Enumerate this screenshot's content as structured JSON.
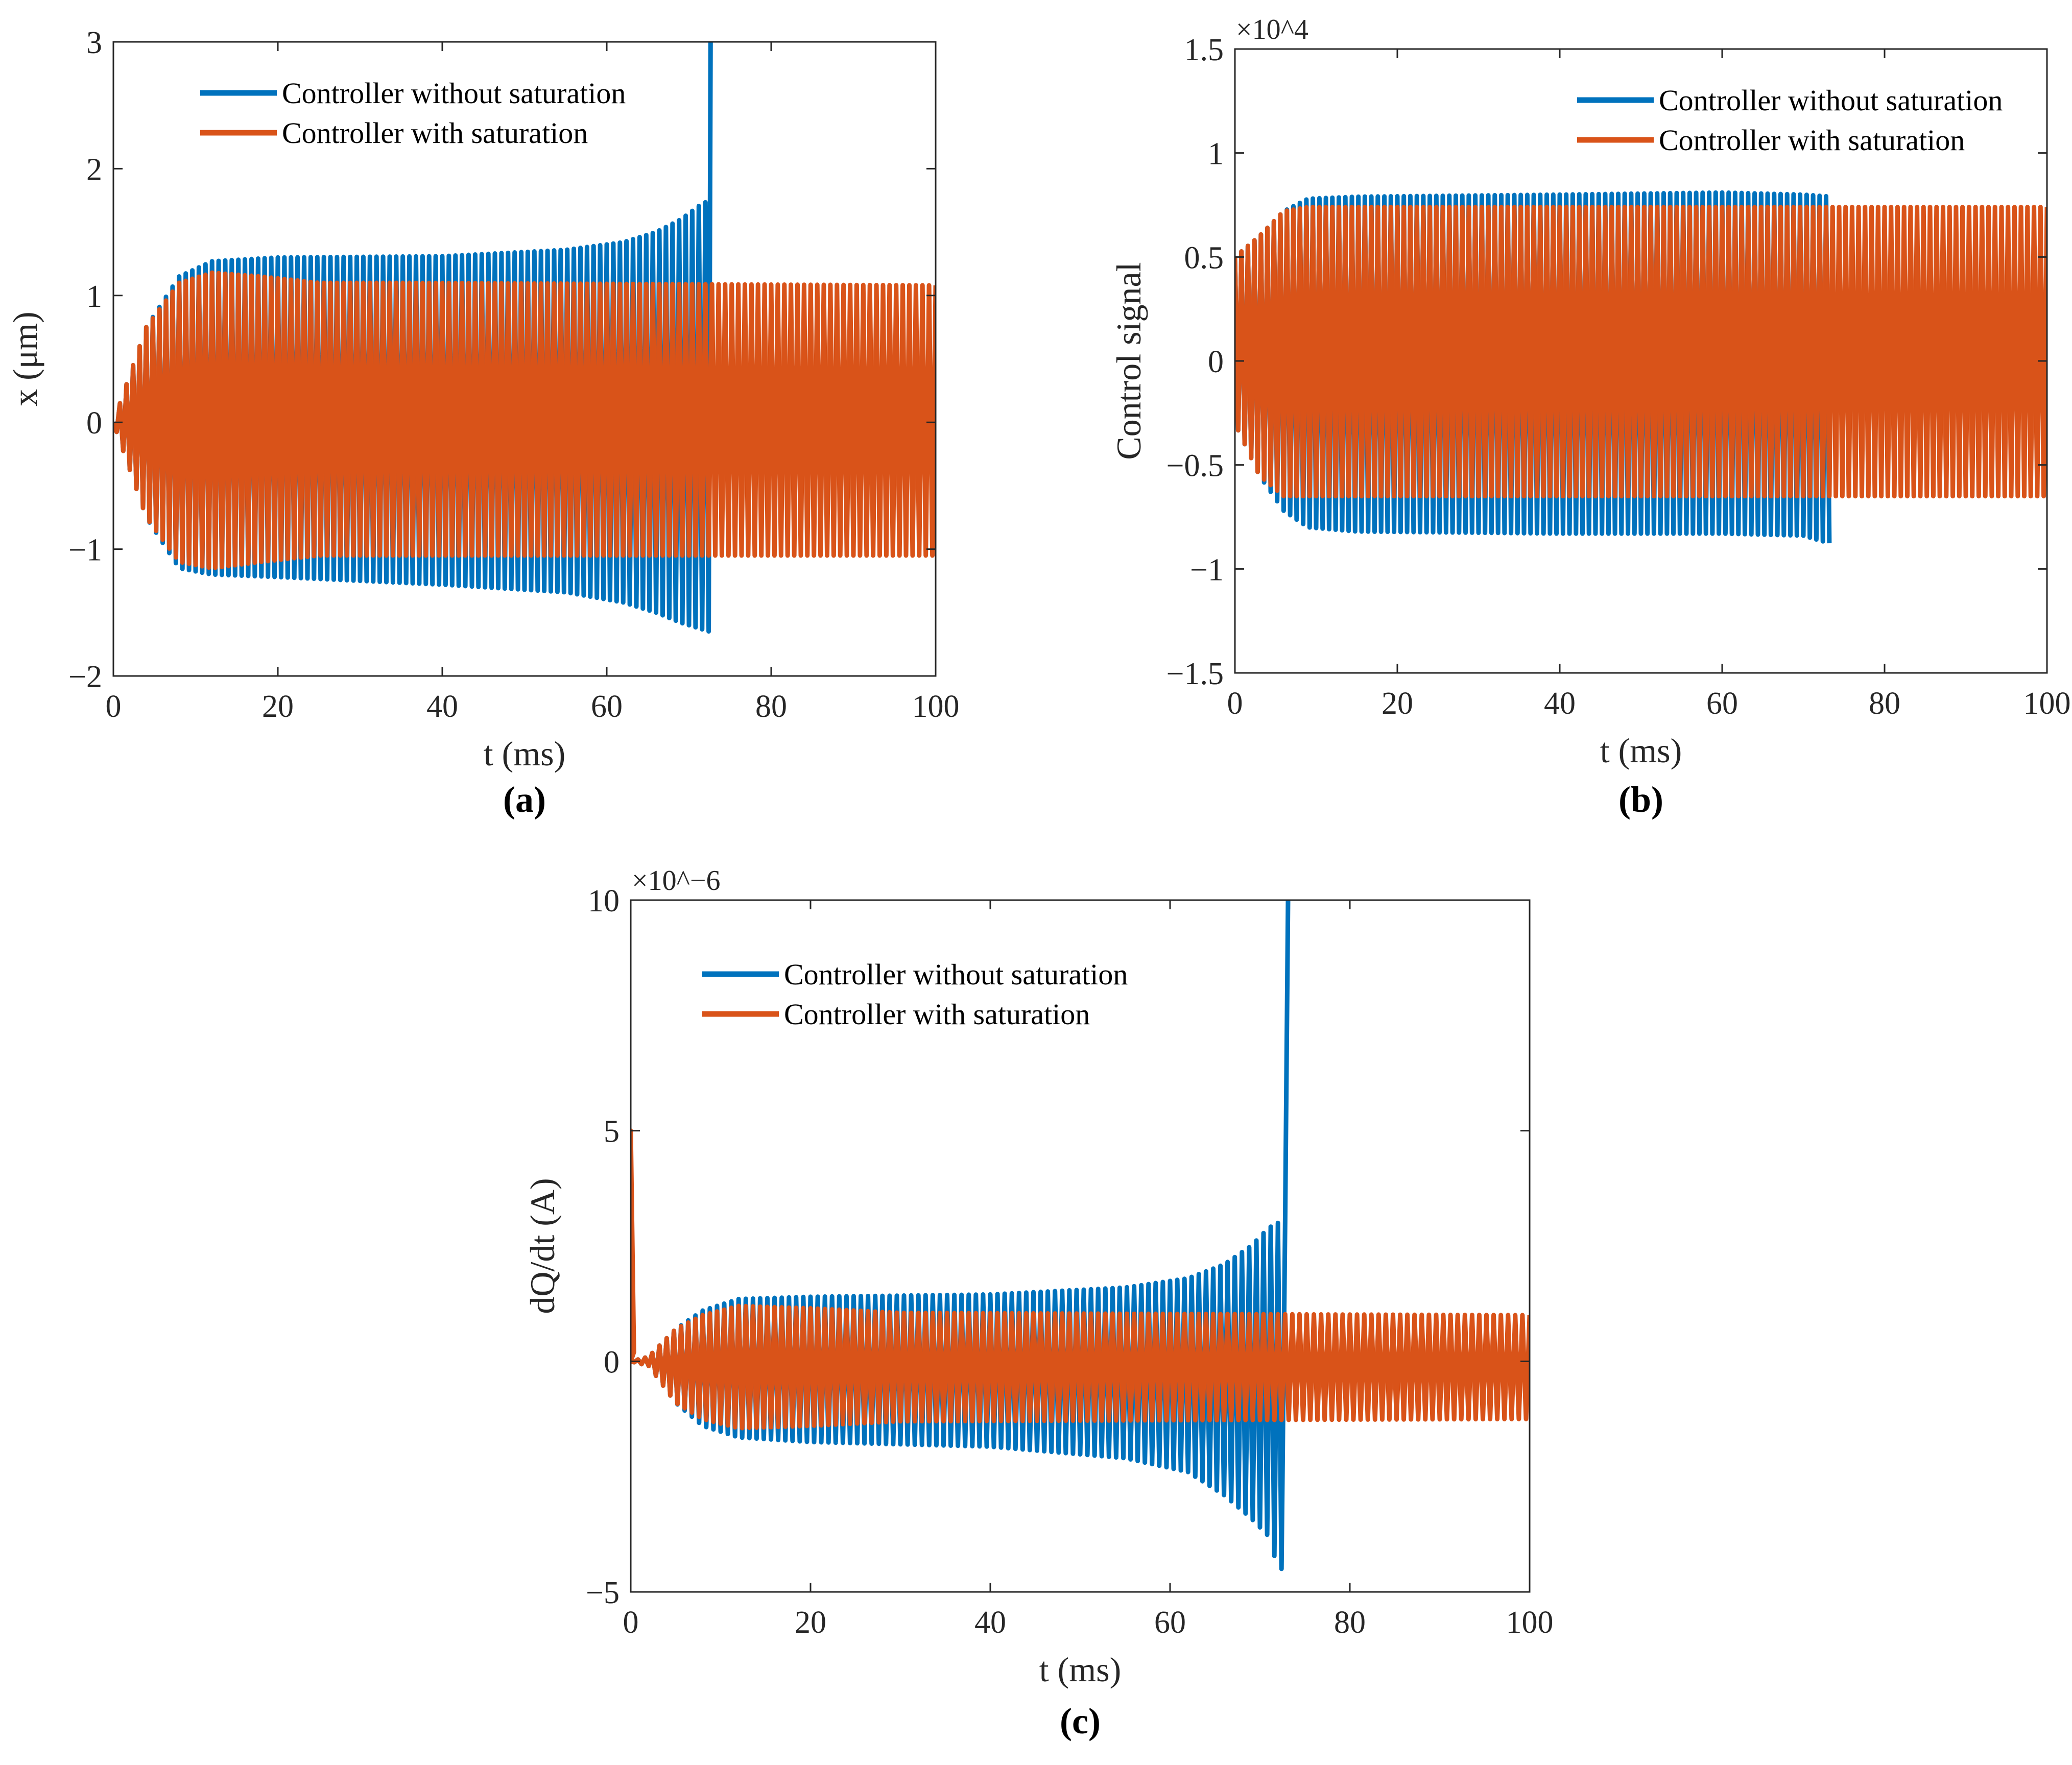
{
  "colors": {
    "without": "#0072BD",
    "with": "#D95319",
    "axis": "#262626"
  },
  "legend": {
    "without": "Controller without saturation",
    "with": "Controller with saturation"
  },
  "chart_data": [
    {
      "id": "a",
      "type": "line",
      "panel_label": "(a)",
      "xlabel": "t (ms)",
      "ylabel": "x (μm)",
      "xlim": [
        0,
        100
      ],
      "ylim": [
        -2,
        3
      ],
      "exponent": "",
      "xticks": [
        0,
        20,
        40,
        60,
        80,
        100
      ],
      "yticks": [
        -2,
        -1,
        0,
        1,
        2,
        3
      ],
      "xtick_labels": [
        "0",
        "20",
        "40",
        "60",
        "80",
        "100"
      ],
      "ytick_labels": [
        "−2",
        "−1",
        "0",
        "1",
        "2",
        "3"
      ],
      "legend_position": "top-left",
      "series": [
        {
          "name": "Controller without saturation",
          "color_key": "without",
          "period_ms": 0.8,
          "stop_x": 72.5,
          "blowup_to": 3.0,
          "envelope": [
            [
              0,
              0
            ],
            [
              4,
              0.75
            ],
            [
              8,
              1.15
            ],
            [
              12,
              1.27
            ],
            [
              20,
              1.3
            ],
            [
              40,
              1.31
            ],
            [
              55,
              1.36
            ],
            [
              62,
              1.42
            ],
            [
              66,
              1.5
            ],
            [
              69,
              1.6
            ],
            [
              71.5,
              1.72
            ],
            [
              72.5,
              1.75
            ]
          ],
          "lower_envelope": [
            [
              0,
              0
            ],
            [
              4,
              -0.75
            ],
            [
              8,
              -1.15
            ],
            [
              12,
              -1.2
            ],
            [
              20,
              -1.22
            ],
            [
              40,
              -1.28
            ],
            [
              55,
              -1.34
            ],
            [
              62,
              -1.42
            ],
            [
              66,
              -1.5
            ],
            [
              69,
              -1.58
            ],
            [
              72.5,
              -1.65
            ]
          ]
        },
        {
          "name": "Controller with saturation",
          "color_key": "with",
          "period_ms": 0.8,
          "envelope": [
            [
              0,
              0
            ],
            [
              4,
              0.75
            ],
            [
              8,
              1.1
            ],
            [
              12,
              1.18
            ],
            [
              18,
              1.15
            ],
            [
              25,
              1.1
            ],
            [
              35,
              1.1
            ],
            [
              100,
              1.08
            ]
          ],
          "lower_envelope": [
            [
              0,
              0
            ],
            [
              4,
              -0.75
            ],
            [
              8,
              -1.1
            ],
            [
              12,
              -1.15
            ],
            [
              18,
              -1.1
            ],
            [
              25,
              -1.05
            ],
            [
              35,
              -1.05
            ],
            [
              100,
              -1.05
            ]
          ]
        }
      ]
    },
    {
      "id": "b",
      "type": "line",
      "panel_label": "(b)",
      "xlabel": "t (ms)",
      "ylabel": "Control signal",
      "xlim": [
        0,
        100
      ],
      "ylim": [
        -1.5,
        1.5
      ],
      "exponent": "×10^4",
      "xticks": [
        0,
        20,
        40,
        60,
        80,
        100
      ],
      "yticks": [
        -1.5,
        -1,
        -0.5,
        0,
        0.5,
        1,
        1.5
      ],
      "xtick_labels": [
        "0",
        "20",
        "40",
        "60",
        "80",
        "100"
      ],
      "ytick_labels": [
        "−1.5",
        "−1",
        "−0.5",
        "0",
        "0.5",
        "1",
        "1.5"
      ],
      "legend_position": "top-right",
      "series": [
        {
          "name": "Controller without saturation",
          "color_key": "without",
          "period_ms": 0.8,
          "stop_x": 73.5,
          "envelope": [
            [
              0,
              0.5
            ],
            [
              3,
              0.6
            ],
            [
              6,
              0.72
            ],
            [
              9,
              0.78
            ],
            [
              15,
              0.79
            ],
            [
              40,
              0.8
            ],
            [
              60,
              0.81
            ],
            [
              70,
              0.8
            ],
            [
              73.5,
              0.79
            ]
          ],
          "lower_envelope": [
            [
              0,
              -0.3
            ],
            [
              3,
              -0.55
            ],
            [
              6,
              -0.72
            ],
            [
              9,
              -0.8
            ],
            [
              15,
              -0.82
            ],
            [
              40,
              -0.83
            ],
            [
              60,
              -0.83
            ],
            [
              70,
              -0.84
            ],
            [
              73.5,
              -0.88
            ]
          ]
        },
        {
          "name": "Controller with saturation",
          "color_key": "with",
          "period_ms": 0.8,
          "envelope": [
            [
              0,
              0.5
            ],
            [
              3,
              0.6
            ],
            [
              6,
              0.72
            ],
            [
              9,
              0.74
            ],
            [
              100,
              0.74
            ]
          ],
          "lower_envelope": [
            [
              0,
              -0.3
            ],
            [
              3,
              -0.55
            ],
            [
              6,
              -0.65
            ],
            [
              100,
              -0.65
            ]
          ]
        }
      ]
    },
    {
      "id": "c",
      "type": "line",
      "panel_label": "(c)",
      "xlabel": "t (ms)",
      "ylabel": "dQ/dt (A)",
      "xlim": [
        0,
        100
      ],
      "ylim": [
        -5,
        10
      ],
      "exponent": "×10^−6",
      "xticks": [
        0,
        20,
        40,
        60,
        80,
        100
      ],
      "yticks": [
        -5,
        0,
        5,
        10
      ],
      "xtick_labels": [
        "0",
        "20",
        "40",
        "60",
        "80",
        "100"
      ],
      "ytick_labels": [
        "−5",
        "0",
        "5",
        "10"
      ],
      "legend_position": "top-left",
      "initial_spike": 5.0,
      "series": [
        {
          "name": "Controller without saturation",
          "color_key": "without",
          "period_ms": 0.8,
          "stop_x": 73.0,
          "blowup_to": 10.0,
          "envelope": [
            [
              0,
              0
            ],
            [
              2,
              0.1
            ],
            [
              5,
              0.7
            ],
            [
              8,
              1.1
            ],
            [
              12,
              1.35
            ],
            [
              20,
              1.4
            ],
            [
              40,
              1.45
            ],
            [
              55,
              1.6
            ],
            [
              62,
              1.8
            ],
            [
              66,
              2.1
            ],
            [
              69,
              2.5
            ],
            [
              71,
              2.9
            ],
            [
              72,
              3.0
            ]
          ],
          "lower_envelope": [
            [
              0,
              0
            ],
            [
              2,
              -0.1
            ],
            [
              5,
              -0.9
            ],
            [
              8,
              -1.4
            ],
            [
              12,
              -1.65
            ],
            [
              20,
              -1.75
            ],
            [
              40,
              -1.85
            ],
            [
              55,
              -2.1
            ],
            [
              62,
              -2.4
            ],
            [
              66,
              -2.9
            ],
            [
              69,
              -3.4
            ],
            [
              71,
              -3.8
            ],
            [
              72,
              -4.5
            ]
          ]
        },
        {
          "name": "Controller with saturation",
          "color_key": "with",
          "period_ms": 0.8,
          "envelope": [
            [
              0,
              0
            ],
            [
              2,
              0.1
            ],
            [
              5,
              0.7
            ],
            [
              8,
              1.0
            ],
            [
              12,
              1.2
            ],
            [
              20,
              1.15
            ],
            [
              30,
              1.05
            ],
            [
              100,
              1.0
            ]
          ],
          "lower_envelope": [
            [
              0,
              0
            ],
            [
              2,
              -0.1
            ],
            [
              5,
              -0.9
            ],
            [
              8,
              -1.25
            ],
            [
              12,
              -1.45
            ],
            [
              20,
              -1.4
            ],
            [
              30,
              -1.3
            ],
            [
              100,
              -1.25
            ]
          ]
        }
      ]
    }
  ]
}
